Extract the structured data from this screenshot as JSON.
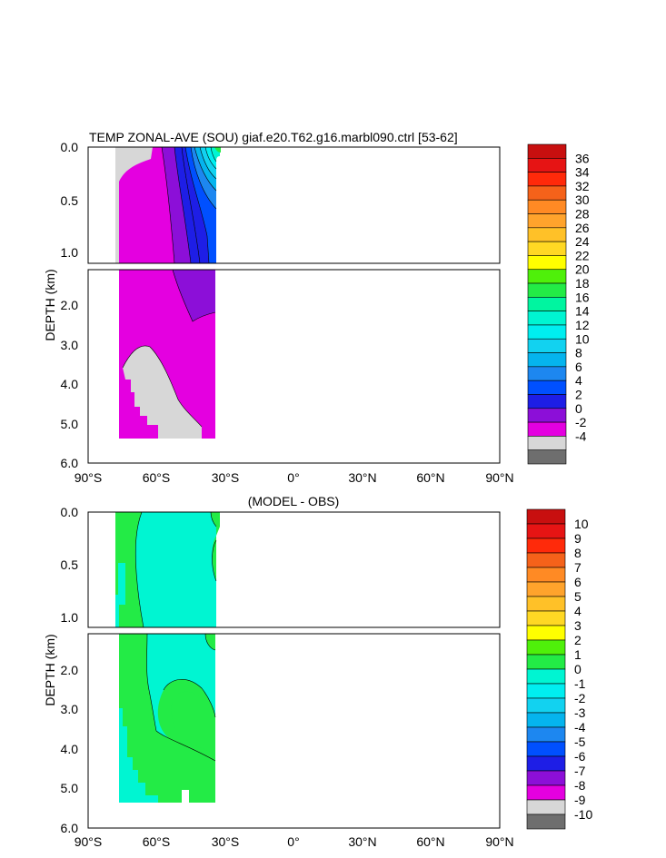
{
  "chart_data": [
    {
      "type": "contour",
      "title": "TEMP ZONAL-AVE (SOU) giaf.e20.T62.g16.marbl090.ctrl [53-62]",
      "ylabel": "DEPTH (km)",
      "xlim": [
        -90,
        90
      ],
      "ylim": [
        6.0,
        0.0
      ],
      "x_ticks": [
        "90°S",
        "60°S",
        "30°S",
        "0°",
        "30°N",
        "60°N",
        "90°N"
      ],
      "upper_y_ticks": [
        "0.0",
        "0.5",
        "1.0"
      ],
      "lower_y_ticks": [
        "2.0",
        "3.0",
        "4.0",
        "5.0",
        "6.0"
      ],
      "data_extent": {
        "lat": [
          -78,
          -34
        ],
        "max_depth_km": 5.4
      },
      "colorbar": {
        "labels": [
          "-4",
          "-2",
          "0",
          "2",
          "4",
          "6",
          "8",
          "10",
          "12",
          "14",
          "16",
          "18",
          "20",
          "22",
          "24",
          "26",
          "28",
          "30",
          "32",
          "34",
          "36"
        ],
        "colors": [
          "#6e6e6e",
          "#d7d7d7",
          "#e400e0",
          "#8c0fd8",
          "#1e1ee6",
          "#0050ff",
          "#1d87f0",
          "#05b4ee",
          "#12d2f0",
          "#00eef0",
          "#00f5d2",
          "#00f5a0",
          "#23eb46",
          "#4ff00a",
          "#ffff00",
          "#ffd824",
          "#ffc128",
          "#ffa32c",
          "#ff8a24",
          "#f5621a",
          "#ff2a0a",
          "#e61414",
          "#c80f0f"
        ]
      },
      "regions": [
        {
          "value_class": "<-2 (land / no data)",
          "color": "#d7d7d7"
        },
        {
          "value_class": "0 to 2",
          "color": "#e400e0"
        },
        {
          "value_class": "2 to 4",
          "color": "#8c0fd8"
        },
        {
          "value_class": "4 to 6",
          "color": "#1e1ee6"
        },
        {
          "value_class": "6 to 14 near surface 40S-34S",
          "color": "gradient"
        }
      ]
    },
    {
      "type": "contour",
      "title": "(MODEL - OBS)",
      "ylabel": "DEPTH (km)",
      "xlim": [
        -90,
        90
      ],
      "ylim": [
        6.0,
        0.0
      ],
      "x_ticks": [
        "90°S",
        "60°S",
        "30°S",
        "0°",
        "30°N",
        "60°N",
        "90°N"
      ],
      "upper_y_ticks": [
        "0.0",
        "0.5",
        "1.0"
      ],
      "lower_y_ticks": [
        "2.0",
        "3.0",
        "4.0",
        "5.0",
        "6.0"
      ],
      "colorbar": {
        "labels": [
          "-10",
          "-9",
          "-8",
          "-7",
          "-6",
          "-5",
          "-4",
          "-3",
          "-2",
          "-1",
          "0",
          "1",
          "2",
          "3",
          "4",
          "5",
          "6",
          "7",
          "8",
          "9",
          "10"
        ],
        "colors": [
          "#6e6e6e",
          "#d7d7d7",
          "#e400e0",
          "#8c0fd8",
          "#1e1ee6",
          "#0050ff",
          "#1d87f0",
          "#05b4ee",
          "#12d2f0",
          "#00eef0",
          "#00f5d2",
          "#23eb46",
          "#4ff00a",
          "#ffff00",
          "#ffd824",
          "#ffc128",
          "#ffa32c",
          "#ff8a24",
          "#f5621a",
          "#ff2a0a",
          "#e61414",
          "#c80f0f"
        ]
      },
      "regions": [
        {
          "value_class": "0 to 1",
          "color": "#23eb46"
        },
        {
          "value_class": "-1 to 0",
          "color": "#00f5d2"
        }
      ]
    }
  ]
}
